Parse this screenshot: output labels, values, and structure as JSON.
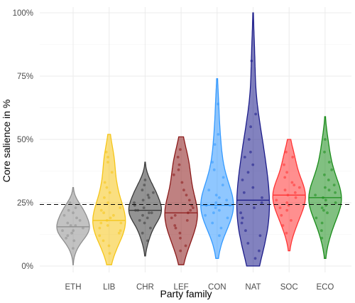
{
  "chart_data": {
    "type": "violin",
    "title": "",
    "xlabel": "Party family",
    "ylabel": "Core salience in %",
    "ylim": [
      0,
      100
    ],
    "yticks": [
      0,
      25,
      50,
      75,
      100
    ],
    "ytick_labels": [
      "0%",
      "25%",
      "50%",
      "75%",
      "100%"
    ],
    "grid": true,
    "reference_line": {
      "value": 24.3,
      "style": "dashed"
    },
    "categories": [
      "ETH",
      "LIB",
      "CHR",
      "LEF",
      "CON",
      "NAT",
      "SOC",
      "ECO"
    ],
    "series": [
      {
        "category": "ETH",
        "color": "#8f8f8f",
        "min": 0.5,
        "max": 31,
        "median": 15.5,
        "points": [
          7,
          10,
          11,
          12,
          13,
          14,
          14,
          15,
          16,
          16,
          17,
          18,
          19,
          20,
          21,
          22,
          23,
          25
        ]
      },
      {
        "category": "LIB",
        "color": "#f5c518",
        "min": 0.5,
        "max": 52,
        "median": 18,
        "points": [
          5,
          8,
          10,
          12,
          13,
          14,
          15,
          16,
          17,
          17,
          18,
          19,
          20,
          21,
          22,
          23,
          25,
          27,
          29,
          31,
          33,
          37,
          41,
          43,
          45
        ]
      },
      {
        "category": "CHR",
        "color": "#3a3a3a",
        "min": 4,
        "max": 41,
        "median": 22,
        "points": [
          10,
          13,
          15,
          17,
          18,
          19,
          20,
          21,
          21,
          22,
          22,
          23,
          24,
          25,
          26,
          27,
          28,
          29,
          30,
          32,
          34
        ]
      },
      {
        "category": "LEF",
        "color": "#8b1a1a",
        "min": 0.5,
        "max": 51,
        "median": 21,
        "points": [
          6,
          8,
          11,
          13,
          15,
          16,
          18,
          19,
          20,
          21,
          22,
          23,
          24,
          26,
          28,
          30,
          33,
          36,
          38,
          40,
          43,
          46
        ]
      },
      {
        "category": "CON",
        "color": "#3399ff",
        "min": 3,
        "max": 74,
        "median": 24,
        "points": [
          12,
          15,
          17,
          19,
          20,
          21,
          22,
          23,
          24,
          24,
          25,
          26,
          27,
          28,
          30,
          32,
          35,
          38,
          41,
          48,
          52,
          64
        ]
      },
      {
        "category": "NAT",
        "color": "#1c1c8a",
        "min": 0,
        "max": 100,
        "median": 26,
        "points": [
          3,
          6,
          9,
          12,
          14,
          17,
          19,
          21,
          23,
          25,
          27,
          29,
          31,
          34,
          37,
          40,
          43,
          45,
          50,
          55,
          60,
          81
        ]
      },
      {
        "category": "SOC",
        "color": "#ff3333",
        "min": 6,
        "max": 50,
        "median": 28,
        "points": [
          13,
          16,
          18,
          20,
          22,
          23,
          24,
          25,
          26,
          27,
          28,
          29,
          30,
          31,
          32,
          33,
          35,
          37,
          40,
          43,
          45
        ]
      },
      {
        "category": "ECO",
        "color": "#1a8c1a",
        "min": 3,
        "max": 59,
        "median": 27,
        "points": [
          11,
          14,
          17,
          19,
          21,
          22,
          23,
          24,
          25,
          26,
          27,
          28,
          29,
          30,
          31,
          32,
          34,
          36,
          38,
          41,
          45,
          50
        ]
      }
    ]
  }
}
